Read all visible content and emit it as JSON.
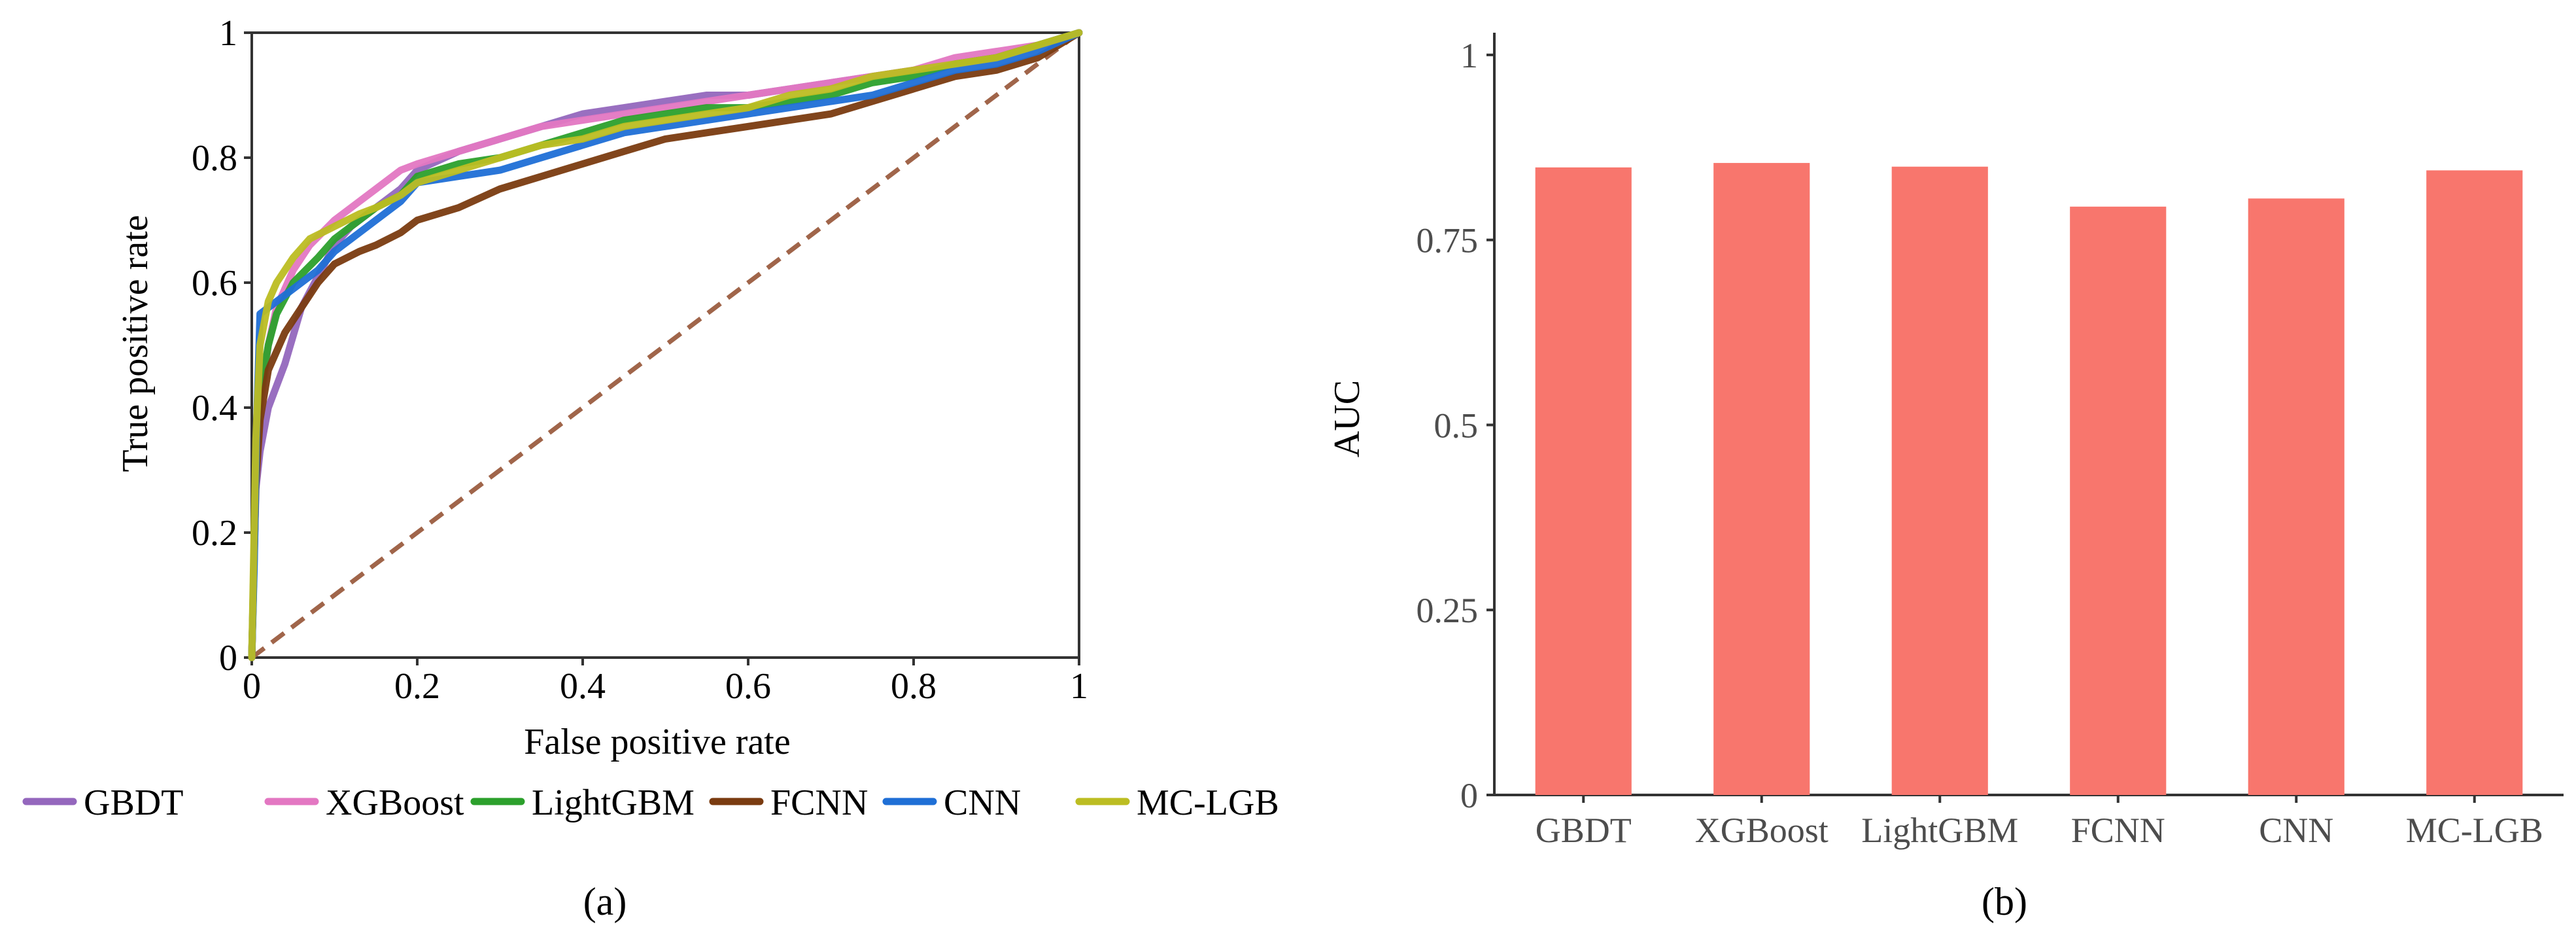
{
  "colors": {
    "GBDT": "#9467bd",
    "XGBoost": "#e377c2",
    "LightGBM": "#2ca02c",
    "FCNN": "#7a3b10",
    "CNN": "#1f6fd6",
    "MC-LGB": "#bcbd22",
    "diagonal": "#a0654a",
    "bar": "#f8766d",
    "axis": "#333333"
  },
  "chart_data": [
    {
      "type": "line",
      "panel_label": "(a)",
      "title": "",
      "xlabel": "False positive rate",
      "ylabel": "True positive rate",
      "xlim": [
        0,
        1
      ],
      "ylim": [
        0,
        1
      ],
      "xticks": [
        0,
        0.2,
        0.4,
        0.6,
        0.8,
        1
      ],
      "xtick_labels": [
        "0",
        "0.2",
        "0.4",
        "0.6",
        "0.8",
        "1"
      ],
      "yticks": [
        0,
        0.2,
        0.4,
        0.6,
        0.8,
        1
      ],
      "ytick_labels": [
        "0",
        "0.2",
        "0.4",
        "0.6",
        "0.8",
        "1"
      ],
      "grid": false,
      "legend": "bottom",
      "legend_labels": [
        "GBDT",
        "XGBoost",
        "LightGBM",
        "FCNN",
        "CNN",
        "MC-LGB"
      ],
      "reference_line": {
        "x": [
          0,
          1
        ],
        "y": [
          0,
          1
        ],
        "style": "dashed"
      },
      "series": [
        {
          "name": "GBDT",
          "x": [
            0,
            0.005,
            0.01,
            0.02,
            0.04,
            0.06,
            0.08,
            0.1,
            0.12,
            0.15,
            0.18,
            0.2,
            0.25,
            0.3,
            0.35,
            0.4,
            0.45,
            0.5,
            0.55,
            0.6,
            0.65,
            0.7,
            0.75,
            0.8,
            0.85,
            0.9,
            0.95,
            1
          ],
          "y": [
            0,
            0.27,
            0.33,
            0.4,
            0.47,
            0.56,
            0.61,
            0.66,
            0.69,
            0.72,
            0.75,
            0.78,
            0.81,
            0.83,
            0.85,
            0.87,
            0.88,
            0.89,
            0.9,
            0.9,
            0.91,
            0.92,
            0.93,
            0.94,
            0.95,
            0.96,
            0.98,
            1
          ]
        },
        {
          "name": "XGBoost",
          "x": [
            0,
            0.005,
            0.01,
            0.02,
            0.03,
            0.05,
            0.07,
            0.1,
            0.13,
            0.15,
            0.18,
            0.2,
            0.25,
            0.3,
            0.35,
            0.4,
            0.45,
            0.5,
            0.55,
            0.6,
            0.65,
            0.7,
            0.75,
            0.8,
            0.85,
            0.9,
            0.95,
            1
          ],
          "y": [
            0,
            0.3,
            0.4,
            0.5,
            0.56,
            0.62,
            0.66,
            0.7,
            0.73,
            0.75,
            0.78,
            0.79,
            0.81,
            0.83,
            0.85,
            0.86,
            0.87,
            0.88,
            0.89,
            0.9,
            0.91,
            0.92,
            0.93,
            0.94,
            0.96,
            0.97,
            0.98,
            1
          ]
        },
        {
          "name": "LightGBM",
          "x": [
            0,
            0.005,
            0.01,
            0.02,
            0.03,
            0.05,
            0.08,
            0.1,
            0.13,
            0.15,
            0.18,
            0.2,
            0.25,
            0.3,
            0.35,
            0.4,
            0.45,
            0.5,
            0.55,
            0.6,
            0.65,
            0.7,
            0.75,
            0.8,
            0.85,
            0.9,
            0.95,
            1
          ],
          "y": [
            0,
            0.3,
            0.42,
            0.5,
            0.55,
            0.6,
            0.64,
            0.67,
            0.7,
            0.72,
            0.74,
            0.77,
            0.79,
            0.8,
            0.82,
            0.84,
            0.86,
            0.87,
            0.88,
            0.88,
            0.89,
            0.9,
            0.92,
            0.93,
            0.95,
            0.96,
            0.98,
            1
          ]
        },
        {
          "name": "FCNN",
          "x": [
            0,
            0.005,
            0.01,
            0.02,
            0.04,
            0.06,
            0.08,
            0.1,
            0.13,
            0.15,
            0.18,
            0.2,
            0.25,
            0.3,
            0.35,
            0.4,
            0.45,
            0.5,
            0.55,
            0.6,
            0.65,
            0.7,
            0.75,
            0.8,
            0.85,
            0.9,
            0.95,
            1
          ],
          "y": [
            0,
            0.28,
            0.38,
            0.46,
            0.52,
            0.56,
            0.6,
            0.63,
            0.65,
            0.66,
            0.68,
            0.7,
            0.72,
            0.75,
            0.77,
            0.79,
            0.81,
            0.83,
            0.84,
            0.85,
            0.86,
            0.87,
            0.89,
            0.91,
            0.93,
            0.94,
            0.96,
            1
          ]
        },
        {
          "name": "CNN",
          "x": [
            0,
            0.003,
            0.006,
            0.01,
            0.02,
            0.04,
            0.06,
            0.08,
            0.1,
            0.13,
            0.15,
            0.18,
            0.2,
            0.25,
            0.3,
            0.35,
            0.4,
            0.45,
            0.5,
            0.55,
            0.6,
            0.65,
            0.7,
            0.75,
            0.8,
            0.85,
            0.9,
            0.95,
            1
          ],
          "y": [
            0,
            0.15,
            0.38,
            0.55,
            0.56,
            0.58,
            0.6,
            0.62,
            0.65,
            0.68,
            0.7,
            0.73,
            0.76,
            0.77,
            0.78,
            0.8,
            0.82,
            0.84,
            0.85,
            0.86,
            0.87,
            0.88,
            0.89,
            0.9,
            0.92,
            0.94,
            0.95,
            0.97,
            1
          ]
        },
        {
          "name": "MC-LGB",
          "x": [
            0,
            0.005,
            0.01,
            0.02,
            0.03,
            0.05,
            0.07,
            0.1,
            0.13,
            0.15,
            0.18,
            0.2,
            0.25,
            0.3,
            0.35,
            0.4,
            0.45,
            0.5,
            0.55,
            0.6,
            0.65,
            0.7,
            0.75,
            0.8,
            0.85,
            0.9,
            0.95,
            1
          ],
          "y": [
            0,
            0.35,
            0.5,
            0.57,
            0.6,
            0.64,
            0.67,
            0.69,
            0.71,
            0.72,
            0.74,
            0.76,
            0.78,
            0.8,
            0.82,
            0.83,
            0.85,
            0.86,
            0.87,
            0.88,
            0.9,
            0.91,
            0.93,
            0.94,
            0.95,
            0.96,
            0.98,
            1
          ]
        }
      ]
    },
    {
      "type": "bar",
      "panel_label": "(b)",
      "title": "",
      "xlabel": "",
      "ylabel": "AUC",
      "categories": [
        "GBDT",
        "XGBoost",
        "LightGBM",
        "FCNN",
        "CNN",
        "MC-LGB"
      ],
      "values": [
        0.848,
        0.854,
        0.849,
        0.795,
        0.806,
        0.844
      ],
      "ylim": [
        0,
        1.03
      ],
      "yticks": [
        0,
        0.25,
        0.5,
        0.75,
        1
      ],
      "ytick_labels": [
        "0",
        "0.25",
        "0.5",
        "0.75",
        "1"
      ],
      "grid": false
    }
  ]
}
